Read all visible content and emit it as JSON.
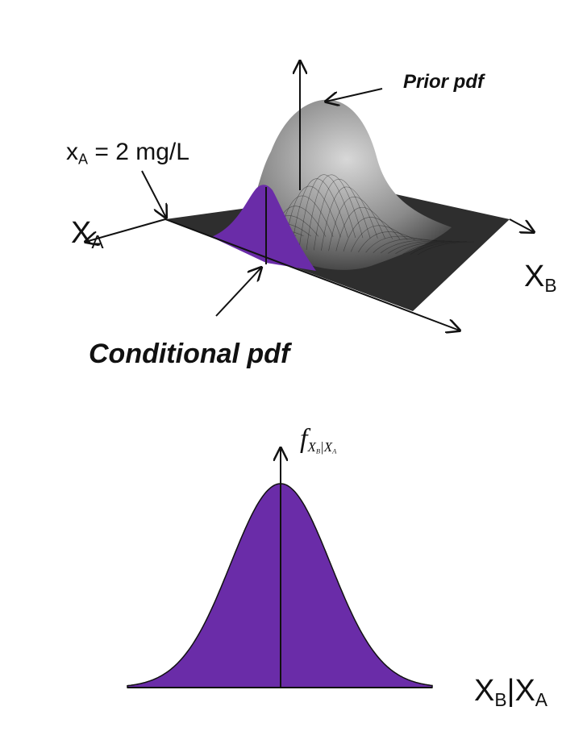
{
  "labels": {
    "prior": "Prior pdf",
    "observation_prefix": "x",
    "observation_sub": "A",
    "observation_suffix": " = 2 mg/L",
    "axis_xa_main": "X",
    "axis_xa_sub": "A",
    "axis_xb_main": "X",
    "axis_xb_sub": "B",
    "conditional": "Conditional pdf",
    "f_main": "f",
    "f_sub": "X",
    "f_sub_b": "B",
    "f_sub_sep": "|X",
    "f_sub_a": "A",
    "cond_axis_b_main": "X",
    "cond_axis_b_sub": "B",
    "cond_axis_sep": "|X",
    "cond_axis_a_sub": "A"
  },
  "colors": {
    "conditional_fill": "#6a2ca8",
    "surface_dark": "#2e2e2e",
    "surface_light": "#bdbdbd",
    "line": "#111111"
  }
}
